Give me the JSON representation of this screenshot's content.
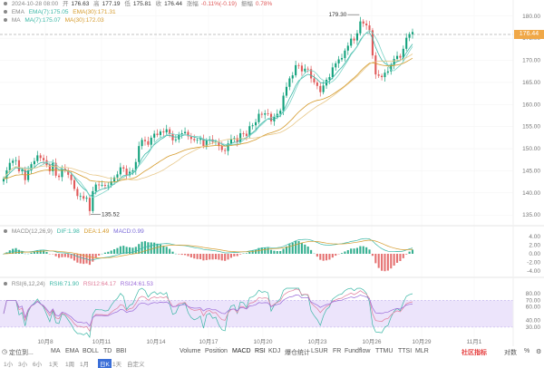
{
  "header": {
    "datetime": "2024-10-28 08:00",
    "open_label": "开",
    "open": "176.63",
    "high_label": "高",
    "high": "177.19",
    "low_label": "低",
    "low": "175.81",
    "close_label": "收",
    "close": "176.44",
    "change_label": "涨幅",
    "change": "-0.11%(-0.19)",
    "amplitude_label": "振幅",
    "amplitude": "0.78%"
  },
  "ema_legend": {
    "name": "EMA",
    "ema7": "EMA(7):175.05",
    "ema30": "EMA(30):171.31"
  },
  "ma_legend": {
    "name": "MA",
    "ma7": "MA(7):175.07",
    "ma30": "MA(30):172.03"
  },
  "macd_legend": {
    "name": "MACD(12,26,9)",
    "dif": "DIF:1.98",
    "dea": "DEA:1.49",
    "macd": "MACD:0.99"
  },
  "rsi_legend": {
    "name": "RSI(6,12,24)",
    "rsi6": "RSI6:71.90",
    "rsi12": "RSI12:64.17",
    "rsi24": "RSI24:61.53"
  },
  "current_price": "176.44",
  "colors": {
    "up": "#12a17c",
    "down": "#e05a5a",
    "ema7": "#3bb7a6",
    "ema30": "#d59b2d",
    "rsi_band": "#ece4fb",
    "price_tag": "#f0a848"
  },
  "chart_data": {
    "type": "candlestick",
    "x_ticks": [
      "10月8",
      "10月11",
      "10月14",
      "10月17",
      "10月20",
      "10月23",
      "10月26",
      "10月29",
      "11月1"
    ],
    "price_axis": {
      "ticks": [
        "180.00",
        "175.00",
        "170.00",
        "165.00",
        "160.00",
        "155.00",
        "150.00",
        "145.00",
        "140.00",
        "135.00"
      ],
      "ylim": [
        133,
        182
      ]
    },
    "annotations": [
      {
        "label": "179.30",
        "value": 179.3
      },
      {
        "label": "135.52",
        "value": 135.52
      }
    ],
    "closes": [
      143.2,
      145.1,
      146.8,
      147.3,
      147.4,
      144.9,
      145.2,
      142.9,
      145.1,
      146.5,
      147.2,
      148.5,
      147.9,
      147.4,
      146.3,
      144.9,
      146.8,
      143.9,
      143.6,
      145.5,
      145.1,
      144.1,
      142.9,
      140.9,
      139.3,
      139.3,
      138.7,
      138.9,
      135.9,
      140.4,
      141.9,
      141.8,
      141.8,
      141.6,
      141.7,
      142.6,
      143.5,
      144.2,
      145.8,
      145.5,
      144.0,
      144.8,
      145.1,
      147.0,
      150.6,
      152.0,
      151.7,
      150.9,
      152.5,
      153.4,
      153.1,
      153.9,
      153.7,
      154.4,
      153.3,
      151.9,
      152.1,
      153.3,
      153.5,
      153.8,
      152.8,
      152.2,
      151.9,
      152.0,
      152.2,
      150.6,
      151.9,
      152.1,
      151.5,
      151.6,
      150.6,
      149.7,
      149.5,
      151.2,
      152.2,
      152.4,
      151.5,
      153.5,
      153.4,
      152.9,
      155.1,
      155.3,
      156.0,
      157.9,
      157.7,
      158.0,
      157.9,
      156.2,
      157.2,
      157.9,
      158.6,
      162.0,
      164.0,
      165.9,
      166.6,
      168.9,
      168.8,
      167.5,
      168.1,
      168.0,
      165.9,
      165.0,
      164.2,
      162.8,
      164.3,
      165.6,
      166.2,
      168.4,
      169.3,
      170.2,
      170.5,
      172.2,
      173.3,
      174.9,
      174.5,
      176.1,
      178.8,
      178.3,
      177.9,
      176.8,
      171.1,
      166.8,
      166.5,
      166.2,
      167.2,
      167.5,
      169.0,
      170.3,
      171.0,
      170.6,
      172.6,
      175.1,
      175.9,
      176.4
    ],
    "ema7_last": 175.05,
    "ema30_last": 171.31,
    "ma7_last": 175.07,
    "ma30_last": 172.03,
    "macd_axis": {
      "ticks": [
        "4.00",
        "2.00",
        "0.00",
        "-2.00",
        "-4.00"
      ],
      "ylim": [
        -5,
        5
      ]
    },
    "rsi_axis": {
      "ticks": [
        "80.00",
        "70.00",
        "60.00",
        "40.00",
        "30.00"
      ],
      "ylim": [
        15,
        88
      ]
    }
  },
  "toolbar": {
    "locate_label": "定位到...",
    "indicators": [
      "MA",
      "EMA",
      "BOLL",
      "TD",
      "BBI",
      "Volume",
      "Position",
      "MACD",
      "RSI",
      "KDJ",
      "爆仓统计",
      "LSUR",
      "FR",
      "Fundflow",
      "TTMU",
      "TTSI",
      "MLR"
    ],
    "community_label": "社区指标",
    "log_label": "对数",
    "auto_label": "%"
  },
  "bottom_row": {
    "items": [
      "1小",
      "3小",
      "6小",
      "1天",
      "1周",
      "1月",
      "日K",
      "1天",
      "自定义"
    ]
  }
}
